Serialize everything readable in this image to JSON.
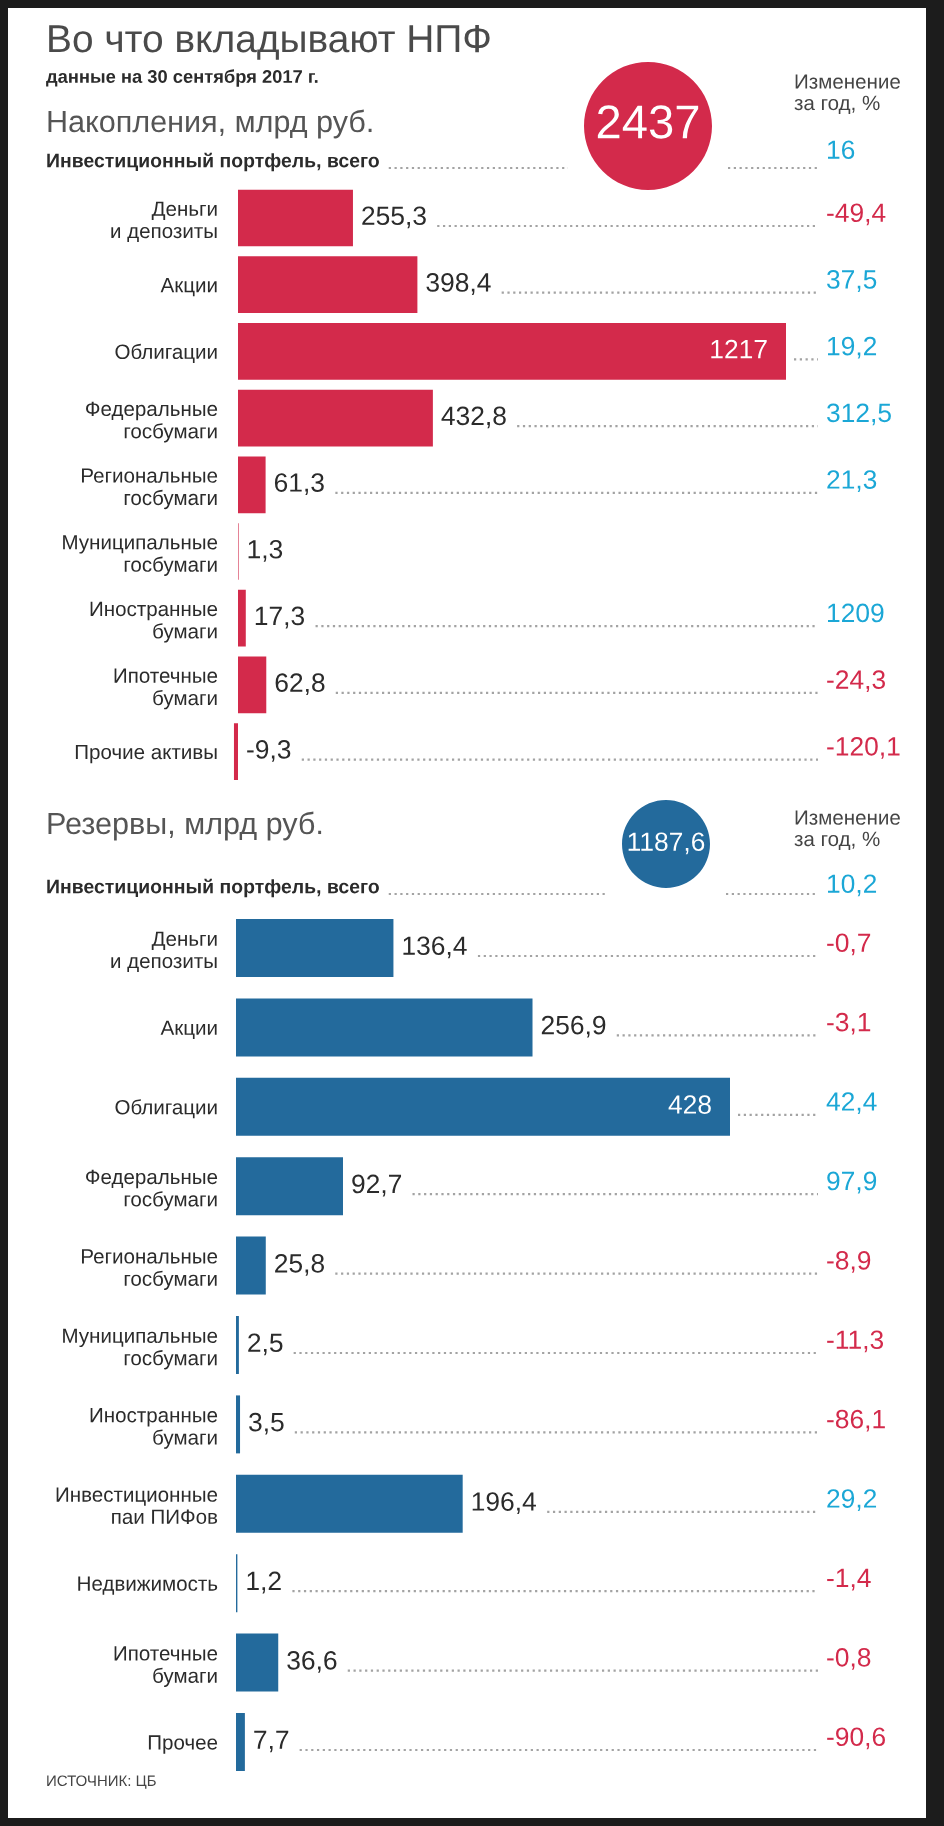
{
  "chart_data": [
    {
      "type": "bar",
      "orientation": "horizontal",
      "title": "Во что вкладывают НПФ",
      "subtitle": "данные на 30 сентября 2017 г.",
      "tick_labels": "y",
      "color": "#d32a4b",
      "categories": [
        "Деньги\nи депозиты",
        "Акции",
        "Облигации",
        "Федеральные\nгосбумаги",
        "Региональные\nгосбумаги",
        "Муниципальные\nгосбумаги",
        "Иностранные\nбумаги",
        "Ипотечные\nбумаги",
        "Прочие активы"
      ],
      "values": [
        255.3,
        398.4,
        1217,
        432.8,
        61.3,
        1.3,
        17.3,
        62.8,
        -9.3
      ],
      "value_labels": [
        "255,3",
        "398,4",
        "1217",
        "432,8",
        "61,3",
        "1,3",
        "17,3",
        "62,8",
        "-9,3"
      ],
      "annotations": [
        "Накопления, млрд руб.",
        "Изменение\nза год, %",
        "2437",
        "Инвестиционный портфель, всего",
        "16",
        "-49,4",
        "37,5",
        "19,2",
        "312,5",
        "21,3",
        "1209",
        "-24,3",
        "-120,1"
      ]
    },
    {
      "type": "bar",
      "orientation": "horizontal",
      "title": "Резервы, млрд руб.",
      "tick_labels": "y",
      "color": "#236a9c",
      "categories": [
        "Деньги\nи депозиты",
        "Акции",
        "Облигации",
        "Федеральные\nгосбумаги",
        "Региональные\nгосбумаги",
        "Муниципальные\nгосбумаги",
        "Иностранные\nбумаги",
        "Инвестиционные\nпаи ПИФов",
        "Недвижимость",
        "Ипотечные\nбумаги",
        "Прочее"
      ],
      "values": [
        136.4,
        256.9,
        428,
        92.7,
        25.8,
        2.5,
        3.5,
        196.4,
        1.2,
        36.6,
        7.7
      ],
      "value_labels": [
        "136,4",
        "256,9",
        "428",
        "92,7",
        "25,8",
        "2,5",
        "3,5",
        "196,4",
        "1,2",
        "36,6",
        "7,7"
      ],
      "annotations": [
        "Изменение\nза год, %",
        "1187,6",
        "Инвестиционный портфель, всего",
        "10,2",
        "-0,7",
        "-3,1",
        "42,4",
        "97,9",
        "-8,9",
        "-11,3",
        "-86,1",
        "29,2",
        "-1,4",
        "-0,8",
        "-90,6",
        "ИСТОЧНИК: ЦБ"
      ]
    }
  ]
}
